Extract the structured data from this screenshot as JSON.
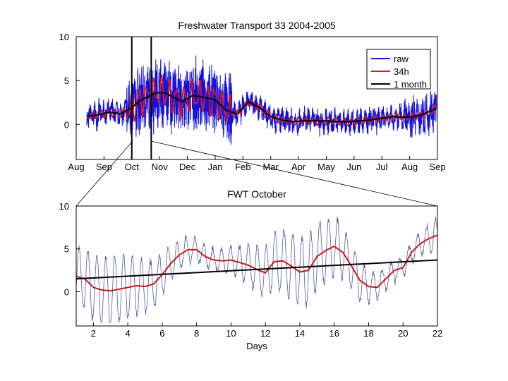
{
  "chart_data": [
    {
      "type": "line",
      "title": "Freshwater Transport 33 2004-2005",
      "xlabel": "",
      "ylabel": "",
      "x_tick_labels": [
        "Aug",
        "Sep",
        "Oct",
        "Nov",
        "Dec",
        "Jan",
        "Feb",
        "Mar",
        "Apr",
        "May",
        "Jun",
        "Jul",
        "Aug",
        "Sep"
      ],
      "x_range_months": [
        0,
        13
      ],
      "ylim": [
        -4,
        10
      ],
      "y_ticks": [
        0,
        5,
        10
      ],
      "legend_position": "top-right",
      "markers": {
        "name": "selected window",
        "x_months": [
          2.0,
          2.7
        ]
      },
      "series": [
        {
          "name": "raw",
          "color": "#1010e0"
        },
        {
          "name": "34h",
          "color": "#e01818"
        },
        {
          "name": "1 month",
          "color": "#000000",
          "x_months": [
            0.4,
            0.8,
            1.2,
            1.6,
            2.0,
            2.3,
            2.6,
            2.9,
            3.2,
            3.5,
            3.8,
            4.2,
            4.6,
            5.0,
            5.4,
            5.8,
            6.2,
            6.6,
            7.0,
            7.4,
            7.8,
            8.2,
            8.6,
            9.0,
            9.4,
            9.8,
            10.2,
            10.6,
            11.0,
            11.4,
            11.8,
            12.2,
            12.6,
            12.95
          ],
          "values": [
            0.9,
            1.1,
            1.4,
            1.2,
            1.9,
            2.7,
            3.2,
            3.6,
            3.6,
            3.1,
            2.6,
            3.3,
            3.1,
            2.8,
            1.6,
            1.2,
            2.6,
            1.9,
            0.9,
            0.5,
            0.3,
            0.4,
            0.4,
            0.4,
            0.3,
            0.3,
            0.4,
            0.5,
            0.7,
            0.9,
            0.8,
            0.9,
            1.3,
            1.8
          ]
        }
      ]
    },
    {
      "type": "line",
      "title": "FWT October",
      "xlabel": "Days",
      "ylabel": "",
      "xlim": [
        1,
        22
      ],
      "x_ticks": [
        2,
        4,
        6,
        8,
        10,
        12,
        14,
        16,
        18,
        20,
        22
      ],
      "ylim": [
        -4,
        10
      ],
      "y_ticks": [
        0,
        5,
        10
      ],
      "series": [
        {
          "name": "raw",
          "color": "#5a5aa8"
        },
        {
          "name": "34h",
          "color": "#c81818",
          "x": [
            1,
            1.5,
            2,
            2.5,
            3,
            3.5,
            4,
            4.5,
            5,
            5.5,
            6,
            6.5,
            7,
            7.5,
            8,
            8.5,
            9,
            9.5,
            10,
            10.5,
            11,
            11.5,
            12,
            12.5,
            13,
            13.5,
            14,
            14.5,
            15,
            15.5,
            16,
            16.5,
            17,
            17.5,
            18,
            18.5,
            19,
            19.5,
            20,
            20.5,
            21,
            21.5,
            22
          ],
          "values": [
            1.8,
            1.5,
            0.5,
            0.2,
            0.1,
            0.3,
            0.5,
            0.7,
            0.6,
            0.9,
            2.0,
            3.3,
            4.3,
            4.9,
            4.9,
            4.1,
            3.7,
            3.6,
            3.7,
            3.4,
            3.1,
            2.6,
            2.2,
            3.5,
            3.6,
            3.0,
            2.3,
            2.5,
            4.1,
            4.8,
            5.3,
            4.6,
            3.0,
            1.3,
            0.6,
            0.5,
            1.5,
            2.5,
            2.8,
            4.6,
            5.6,
            6.2,
            6.6
          ]
        },
        {
          "name": "1 month",
          "color": "#000000",
          "x": [
            1,
            22
          ],
          "values": [
            1.5,
            3.7
          ]
        }
      ]
    }
  ]
}
